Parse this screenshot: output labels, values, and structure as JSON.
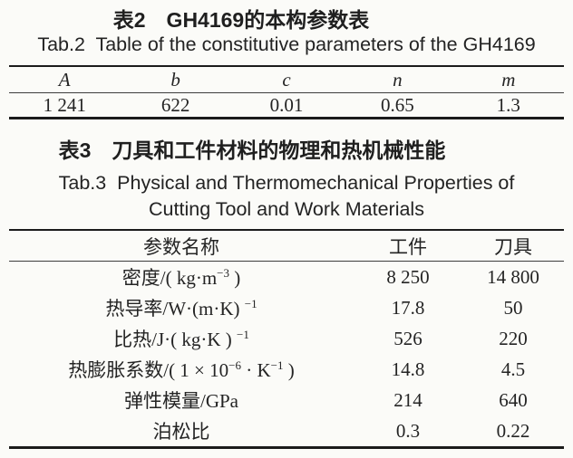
{
  "page": {
    "background": "#fbfbf8",
    "ink_color": "#242424",
    "rule_color": "#1b1b1b"
  },
  "table2": {
    "title_zh": "表2　GH4169的本构参数表",
    "title_en": "Tab.2  Table of the constitutive parameters of the GH4169",
    "columns": [
      "A",
      "b",
      "c",
      "n",
      "m"
    ],
    "values": [
      "1 241",
      "622",
      "0.01",
      "0.65",
      "1.3"
    ]
  },
  "table3": {
    "title_zh": "表3　刀具和工件材料的物理和热机械性能",
    "title_en_line1": "Tab.3  Physical and Thermomechanical Properties of",
    "title_en_line2": "Cutting Tool and Work Materials",
    "columns": [
      "参数名称",
      "工件",
      "刀具"
    ],
    "rows": [
      {
        "label_parts": [
          {
            "t": "密度/( kg·m"
          },
          {
            "t": "−3",
            "sup": true
          },
          {
            "t": " )"
          }
        ],
        "workpiece": "8 250",
        "tool": "14 800"
      },
      {
        "label_parts": [
          {
            "t": "热导率/W·(m·K) "
          },
          {
            "t": "−1",
            "sup": true
          }
        ],
        "workpiece": "17.8",
        "tool": "50"
      },
      {
        "label_parts": [
          {
            "t": "比热/J·( kg·K ) "
          },
          {
            "t": "−1",
            "sup": true
          }
        ],
        "workpiece": "526",
        "tool": "220"
      },
      {
        "label_parts": [
          {
            "t": "热膨胀系数/( 1 × 10"
          },
          {
            "t": "−6",
            "sup": true
          },
          {
            "t": " · K"
          },
          {
            "t": "−1",
            "sup": true
          },
          {
            "t": " )"
          }
        ],
        "workpiece": "14.8",
        "tool": "4.5"
      },
      {
        "label_parts": [
          {
            "t": "弹性模量/GPa"
          }
        ],
        "workpiece": "214",
        "tool": "640"
      },
      {
        "label_parts": [
          {
            "t": "泊松比"
          }
        ],
        "workpiece": "0.3",
        "tool": "0.22"
      }
    ]
  }
}
